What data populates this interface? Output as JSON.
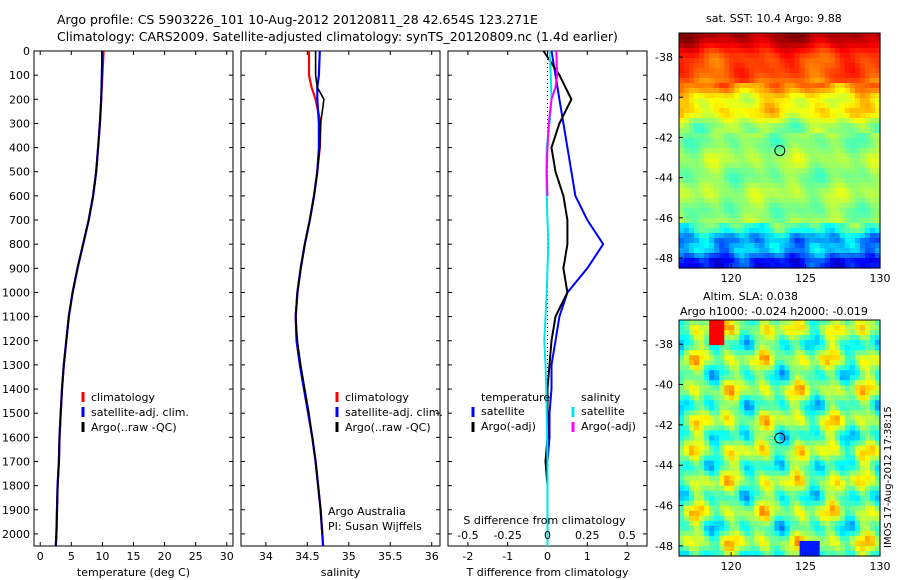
{
  "title_line1": "Argo profile: CS 5903226_101 10-Aug-2012 20120811_28 42.654S 123.271E",
  "title_line2": "Climatology: CARS2009. Satellite-adjusted climatology: synTS_20120809.nc (1.4d earlier)",
  "sst_title": "sat. SST: 10.4 Argo: 9.88",
  "sla_title1": "Altim. SLA: 0.038",
  "sla_title2": "Argo h1000: -0.024 h2000: -0.019",
  "footer_text": "IMOS 17-Aug-2012 17:38:15",
  "argo_text1": "Argo Australia",
  "argo_text2": "PI: Susan Wijffels",
  "colors": {
    "climatology": "#ff0000",
    "satellite": "#0000ff",
    "argo": "#000000",
    "salinity_satellite": "#00e5e5",
    "salinity_argo": "#ff00ff"
  },
  "chart_data": [
    {
      "type": "line",
      "xlabel": "temperature (deg C)",
      "xlim": [
        -1,
        31
      ],
      "xticks": [
        0,
        5,
        10,
        15,
        20,
        25,
        30
      ],
      "ylim": [
        2050,
        0
      ],
      "yticks": [
        0,
        100,
        200,
        300,
        400,
        500,
        600,
        700,
        800,
        900,
        1000,
        1100,
        1200,
        1300,
        1400,
        1500,
        1600,
        1700,
        1800,
        1900,
        2000
      ],
      "legend": {
        "position": "bottom-right",
        "entries": [
          "climatology",
          "satellite-adj. clim.",
          "Argo(..raw -QC)"
        ]
      },
      "series": [
        {
          "name": "climatology",
          "depth": [
            0,
            100,
            200,
            300,
            400,
            500,
            600,
            700,
            800,
            900,
            1000,
            1100,
            1200,
            1300,
            1400,
            1500,
            1600,
            1700,
            1800,
            1900,
            2000,
            2050
          ],
          "values": [
            10.2,
            10.0,
            9.8,
            9.6,
            9.3,
            9.0,
            8.5,
            7.8,
            6.9,
            6.0,
            5.2,
            4.6,
            4.2,
            3.8,
            3.5,
            3.3,
            3.1,
            3.0,
            2.8,
            2.7,
            2.6,
            2.5
          ]
        },
        {
          "name": "satellite-adj. clim.",
          "depth": [
            0,
            100,
            200,
            300,
            400,
            500,
            600,
            700,
            800,
            900,
            1000,
            1100,
            1200,
            1300,
            1400,
            1500,
            1600,
            1700,
            1800,
            1900,
            2000,
            2050
          ],
          "values": [
            10.0,
            9.9,
            9.8,
            9.6,
            9.3,
            9.0,
            8.5,
            7.8,
            6.9,
            6.0,
            5.2,
            4.6,
            4.2,
            3.8,
            3.5,
            3.3,
            3.1,
            3.0,
            2.8,
            2.7,
            2.6,
            2.5
          ]
        },
        {
          "name": "Argo(..raw -QC)",
          "depth": [
            0,
            100,
            200,
            300,
            400,
            500,
            600,
            700,
            800,
            900,
            1000,
            1100,
            1200,
            1300,
            1400,
            1500,
            1600,
            1700,
            1800,
            1900,
            2000,
            2050
          ],
          "values": [
            9.9,
            9.9,
            9.8,
            9.6,
            9.3,
            9.0,
            8.5,
            7.8,
            6.9,
            6.0,
            5.2,
            4.6,
            4.2,
            3.8,
            3.5,
            3.3,
            3.1,
            3.0,
            2.8,
            2.7,
            2.6,
            2.5
          ]
        }
      ]
    },
    {
      "type": "line",
      "xlabel": "salinity",
      "xlim": [
        33.7,
        36.1
      ],
      "xticks": [
        34,
        34.5,
        35,
        35.5,
        36
      ],
      "ylim": [
        2050,
        0
      ],
      "legend": {
        "position": "bottom-right",
        "entries": [
          "climatology",
          "satellite-adj. clim.",
          "Argo(..raw -QC)"
        ]
      },
      "series": [
        {
          "name": "climatology",
          "depth": [
            0,
            100,
            150,
            200,
            300,
            400,
            500,
            600,
            700,
            800,
            900,
            1000,
            1100,
            1200,
            1300,
            1400,
            1500,
            1600,
            1700,
            1800,
            1900,
            2000,
            2050
          ],
          "values": [
            34.52,
            34.52,
            34.55,
            34.6,
            34.66,
            34.65,
            34.62,
            34.58,
            34.53,
            34.47,
            34.42,
            34.38,
            34.36,
            34.37,
            34.41,
            34.46,
            34.51,
            34.56,
            34.6,
            34.63,
            34.66,
            34.68,
            34.69
          ]
        },
        {
          "name": "satellite-adj. clim.",
          "depth": [
            0,
            100,
            150,
            200,
            300,
            400,
            500,
            600,
            700,
            800,
            900,
            1000,
            1100,
            1200,
            1300,
            1400,
            1500,
            1600,
            1700,
            1800,
            1900,
            2000,
            2050
          ],
          "values": [
            34.65,
            34.64,
            34.62,
            34.62,
            34.64,
            34.64,
            34.62,
            34.58,
            34.53,
            34.47,
            34.42,
            34.38,
            34.36,
            34.37,
            34.41,
            34.46,
            34.51,
            34.56,
            34.6,
            34.63,
            34.66,
            34.68,
            34.69
          ]
        },
        {
          "name": "Argo(..raw -QC)",
          "depth": [
            0,
            100,
            150,
            200,
            250,
            300,
            400,
            500,
            600,
            700,
            800,
            900,
            1000,
            1100,
            1200,
            1300,
            1400,
            1500,
            1600,
            1700,
            1800,
            1900,
            2000
          ],
          "values": [
            34.6,
            34.6,
            34.62,
            34.7,
            34.68,
            34.66,
            34.65,
            34.62,
            34.58,
            34.53,
            34.47,
            34.42,
            34.38,
            34.36,
            34.38,
            34.42,
            34.47,
            34.52,
            34.56,
            34.6,
            34.63,
            34.66,
            34.68
          ]
        }
      ]
    },
    {
      "type": "line",
      "xlabel": "T difference from climatology",
      "xlabel_top": "S difference from climatology",
      "xlim": [
        -2.5,
        2.5
      ],
      "xticks": [
        -2,
        -1,
        0,
        1,
        2
      ],
      "xticks_top": [
        -0.5,
        -0.25,
        0,
        0.25,
        0.5
      ],
      "ylim": [
        2050,
        0
      ],
      "legend": {
        "position": "bottom",
        "headers": [
          "temperature",
          "salinity"
        ],
        "entries": [
          "satellite",
          "Argo(-adj)",
          "satellite",
          "Argo(-adj)"
        ]
      },
      "series": [
        {
          "name": "temperature satellite",
          "depth": [
            0,
            100,
            200,
            300,
            400,
            500,
            600,
            700,
            800,
            850,
            900,
            1000,
            1100,
            1200,
            1300,
            1400,
            1500,
            1600,
            1700,
            1800,
            1900,
            2000,
            2050
          ],
          "values": [
            0.1,
            0.2,
            0.3,
            0.4,
            0.5,
            0.6,
            0.7,
            1.0,
            1.4,
            1.2,
            1.0,
            0.5,
            0.3,
            0.2,
            0.1,
            0.1,
            0.05,
            0.05,
            0.0,
            0.0,
            0.0,
            0.0,
            0.0
          ]
        },
        {
          "name": "temperature Argo(-adj)",
          "depth": [
            0,
            100,
            200,
            300,
            400,
            500,
            600,
            700,
            800,
            900,
            1000,
            1100,
            1200,
            1300,
            1400,
            1500,
            1600,
            1700,
            1800,
            1900,
            2000
          ],
          "values": [
            -0.1,
            0.3,
            0.6,
            0.3,
            0.1,
            0.2,
            0.4,
            0.5,
            0.5,
            0.4,
            0.5,
            0.2,
            0.1,
            0.05,
            0.0,
            0.0,
            0.0,
            -0.05,
            0.0,
            0.0,
            0.0
          ]
        },
        {
          "name": "salinity satellite",
          "depth": [
            0,
            100,
            200,
            300,
            400,
            500,
            600,
            700,
            800,
            900,
            1000,
            1100,
            1200,
            1300,
            1400,
            1500,
            1600,
            1700,
            1800,
            1900,
            2000,
            2050
          ],
          "values": [
            0.05,
            0.08,
            0.1,
            0.05,
            -0.02,
            -0.03,
            -0.02,
            0.0,
            0.02,
            0.0,
            -0.02,
            -0.05,
            -0.08,
            -0.05,
            -0.03,
            -0.02,
            -0.01,
            0.0,
            0.0,
            0.0,
            0.0,
            0.0
          ]
        },
        {
          "name": "salinity Argo(-adj)",
          "depth": [
            0,
            100,
            150,
            200,
            300,
            400,
            500,
            600
          ],
          "values": [
            0.22,
            0.24,
            0.2,
            0.1,
            0.03,
            0.0,
            -0.02,
            0.0
          ]
        }
      ]
    },
    {
      "type": "heatmap",
      "title": "sat. SST: 10.4 Argo: 9.88",
      "xlim": [
        116.5,
        130
      ],
      "xticks": [
        120,
        125,
        130
      ],
      "ylim": [
        -48.5,
        -36.8
      ],
      "yticks": [
        -38,
        -40,
        -42,
        -44,
        -46,
        -48
      ],
      "marker": {
        "lon": 123.271,
        "lat": -42.654
      }
    },
    {
      "type": "heatmap",
      "title": "Altim. SLA: 0.038 / Argo h1000: -0.024 h2000: -0.019",
      "xlim": [
        116.5,
        130
      ],
      "xticks": [
        120,
        125,
        130
      ],
      "ylim": [
        -48.5,
        -36.8
      ],
      "yticks": [
        -38,
        -40,
        -42,
        -44,
        -46,
        -48
      ],
      "marker": {
        "lon": 123.271,
        "lat": -42.654
      }
    }
  ]
}
